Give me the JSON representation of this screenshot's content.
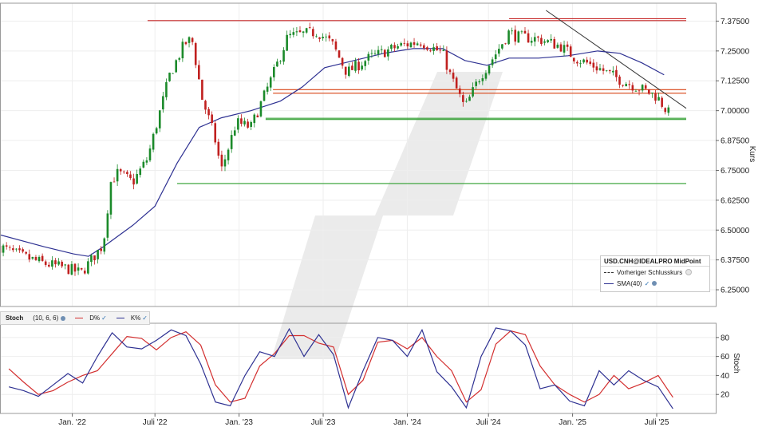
{
  "chart_data": [
    {
      "type": "candlestick",
      "instrument": "USD.CNH@IDEALPRO MidPoint",
      "ylabel": "Kurs",
      "ylim": [
        6.18,
        7.45
      ],
      "y_ticks": [
        "6.25000",
        "6.37500",
        "6.50000",
        "6.62500",
        "6.75000",
        "6.87500",
        "7.00000",
        "7.12500",
        "7.25000",
        "7.37500"
      ],
      "x_ticks": [
        "Jan. '22",
        "Juli '22",
        "Jan. '23",
        "Juli '23",
        "Jan. '24",
        "Juli '24",
        "Jan. '25",
        "Juli '25"
      ],
      "x_range": [
        0,
        48.5
      ],
      "legend": {
        "title": "USD.CNH@IDEALPRO MidPoint",
        "items": [
          "Vorheriger Schlusskurs",
          "SMA(40)"
        ]
      },
      "price_path": [
        [
          0,
          6.43
        ],
        [
          1.5,
          6.39
        ],
        [
          3,
          6.36
        ],
        [
          4.5,
          6.34
        ],
        [
          5.5,
          6.32
        ],
        [
          6,
          6.36
        ],
        [
          7,
          6.44
        ],
        [
          7.5,
          6.7
        ],
        [
          8,
          6.74
        ],
        [
          9,
          6.7
        ],
        [
          10,
          6.8
        ],
        [
          11.5,
          7.15
        ],
        [
          12.5,
          7.28
        ],
        [
          13,
          7.3
        ],
        [
          13.7,
          7.05
        ],
        [
          14.5,
          6.9
        ],
        [
          15,
          6.75
        ],
        [
          16,
          6.95
        ],
        [
          17,
          6.93
        ],
        [
          18.5,
          7.15
        ],
        [
          19.5,
          7.31
        ],
        [
          20.5,
          7.32
        ],
        [
          21.5,
          7.33
        ],
        [
          22.5,
          7.28
        ],
        [
          23.5,
          7.16
        ],
        [
          25,
          7.22
        ],
        [
          27,
          7.27
        ],
        [
          28.5,
          7.29
        ],
        [
          30,
          7.24
        ],
        [
          30.5,
          7.15
        ],
        [
          31.5,
          7.01
        ],
        [
          32.5,
          7.14
        ],
        [
          33.5,
          7.23
        ],
        [
          34.5,
          7.33
        ],
        [
          35,
          7.31
        ],
        [
          36.5,
          7.3
        ],
        [
          38,
          7.27
        ],
        [
          39,
          7.22
        ],
        [
          40.5,
          7.18
        ],
        [
          42,
          7.13
        ],
        [
          43.5,
          7.09
        ],
        [
          44.5,
          7.06
        ],
        [
          45.3,
          6.99
        ]
      ],
      "sma40_path": [
        [
          0,
          6.48
        ],
        [
          3,
          6.43
        ],
        [
          5,
          6.4
        ],
        [
          6,
          6.39
        ],
        [
          7,
          6.43
        ],
        [
          9,
          6.52
        ],
        [
          10.5,
          6.6
        ],
        [
          12,
          6.78
        ],
        [
          13.5,
          6.93
        ],
        [
          15,
          6.97
        ],
        [
          17,
          7.0
        ],
        [
          19,
          7.04
        ],
        [
          20.5,
          7.1
        ],
        [
          22,
          7.18
        ],
        [
          24,
          7.21
        ],
        [
          26,
          7.24
        ],
        [
          28,
          7.26
        ],
        [
          30,
          7.26
        ],
        [
          31.5,
          7.21
        ],
        [
          33,
          7.19
        ],
        [
          34.5,
          7.22
        ],
        [
          36.5,
          7.22
        ],
        [
          38.5,
          7.23
        ],
        [
          40.5,
          7.25
        ],
        [
          42,
          7.24
        ],
        [
          43.5,
          7.2
        ],
        [
          45,
          7.15
        ]
      ],
      "resistance_lines": [
        {
          "x": [
            10,
            46.5
          ],
          "y": 7.377,
          "color": "#c62828"
        },
        {
          "x": [
            34.5,
            46.5
          ],
          "y": 7.385,
          "color": "#c62828"
        },
        {
          "x": [
            18.5,
            46.5
          ],
          "y": 7.088,
          "color": "#d84315"
        },
        {
          "x": [
            18.5,
            46.5
          ],
          "y": 7.073,
          "color": "#d84315"
        }
      ],
      "support_lines": [
        {
          "x": [
            18,
            46.5
          ],
          "y": 6.968,
          "color": "#2e9e2e"
        },
        {
          "x": [
            18,
            46.5
          ],
          "y": 6.963,
          "color": "#2e9e2e"
        },
        {
          "x": [
            12,
            46.5
          ],
          "y": 6.695,
          "color": "#2e9e2e"
        }
      ],
      "trend_line": {
        "x": [
          37,
          46.5
        ],
        "y": [
          7.42,
          7.01
        ],
        "color": "#333333"
      }
    },
    {
      "type": "line",
      "title": "Stoch",
      "params": "(10, 6, 6)",
      "ylabel": "Stoch",
      "ylim": [
        0,
        95
      ],
      "y_ticks": [
        "20",
        "40",
        "60",
        "80"
      ],
      "series": [
        {
          "name": "D%",
          "color": "#d32f2f",
          "points": [
            [
              0,
              47
            ],
            [
              1,
              33
            ],
            [
              2,
              20
            ],
            [
              3,
              24
            ],
            [
              4,
              33
            ],
            [
              5,
              40
            ],
            [
              6,
              45
            ],
            [
              7,
              63
            ],
            [
              8,
              81
            ],
            [
              9,
              79
            ],
            [
              10,
              67
            ],
            [
              11,
              80
            ],
            [
              12,
              86
            ],
            [
              13,
              72
            ],
            [
              14,
              30
            ],
            [
              15,
              12
            ],
            [
              16,
              16
            ],
            [
              17,
              50
            ],
            [
              18,
              63
            ],
            [
              19,
              82
            ],
            [
              20,
              82
            ],
            [
              21,
              74
            ],
            [
              22,
              70
            ],
            [
              23,
              20
            ],
            [
              24,
              35
            ],
            [
              25,
              75
            ],
            [
              26,
              77
            ],
            [
              27,
              68
            ],
            [
              28,
              80
            ],
            [
              29,
              60
            ],
            [
              30,
              45
            ],
            [
              31,
              12
            ],
            [
              32,
              25
            ],
            [
              33,
              73
            ],
            [
              34,
              87
            ],
            [
              35,
              83
            ],
            [
              36,
              50
            ],
            [
              37,
              30
            ],
            [
              38,
              20
            ],
            [
              39,
              12
            ],
            [
              40,
              20
            ],
            [
              41,
              40
            ],
            [
              42,
              26
            ],
            [
              43,
              32
            ],
            [
              44,
              40
            ],
            [
              45,
              17
            ]
          ]
        },
        {
          "name": "K%",
          "color": "#2e3192",
          "points": [
            [
              0,
              28
            ],
            [
              1,
              24
            ],
            [
              2,
              18
            ],
            [
              3,
              30
            ],
            [
              4,
              42
            ],
            [
              5,
              32
            ],
            [
              6,
              60
            ],
            [
              7,
              85
            ],
            [
              8,
              70
            ],
            [
              9,
              68
            ],
            [
              10,
              77
            ],
            [
              11,
              88
            ],
            [
              12,
              82
            ],
            [
              13,
              52
            ],
            [
              14,
              12
            ],
            [
              15,
              8
            ],
            [
              16,
              40
            ],
            [
              17,
              65
            ],
            [
              18,
              60
            ],
            [
              19,
              89
            ],
            [
              20,
              60
            ],
            [
              21,
              83
            ],
            [
              22,
              62
            ],
            [
              23,
              6
            ],
            [
              24,
              45
            ],
            [
              25,
              80
            ],
            [
              26,
              77
            ],
            [
              27,
              60
            ],
            [
              28,
              88
            ],
            [
              29,
              44
            ],
            [
              30,
              28
            ],
            [
              31,
              6
            ],
            [
              32,
              60
            ],
            [
              33,
              90
            ],
            [
              34,
              87
            ],
            [
              35,
              72
            ],
            [
              36,
              26
            ],
            [
              37,
              30
            ],
            [
              38,
              13
            ],
            [
              39,
              8
            ],
            [
              40,
              45
            ],
            [
              41,
              30
            ],
            [
              42,
              45
            ],
            [
              43,
              35
            ],
            [
              44,
              28
            ],
            [
              45,
              5
            ]
          ]
        }
      ]
    }
  ]
}
